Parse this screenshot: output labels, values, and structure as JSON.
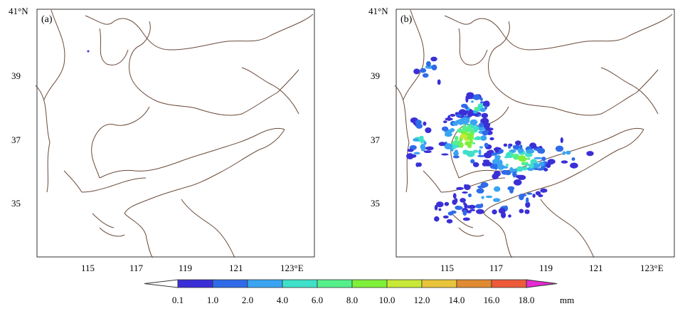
{
  "panels": [
    {
      "label": "(a)",
      "lat_ticks": [
        "41°N",
        "39",
        "37",
        "35"
      ],
      "lon_ticks": [
        "115",
        "117",
        "119",
        "121",
        "123°E"
      ]
    },
    {
      "label": "(b)",
      "lat_ticks": [
        "41°N",
        "39",
        "37",
        "35"
      ],
      "lon_ticks": [
        "115",
        "117",
        "119",
        "121",
        "123°E"
      ]
    }
  ],
  "colorbar": {
    "ticks": [
      "0.1",
      "1.0",
      "2.0",
      "4.0",
      "6.0",
      "8.0",
      "10.0",
      "12.0",
      "14.0",
      "16.0",
      "18.0"
    ],
    "unit": "mm",
    "colors": [
      "#3a2fd6",
      "#2f6be8",
      "#3aa4f2",
      "#3fe0c8",
      "#55f08a",
      "#7ef03a",
      "#c8e838",
      "#e8c43a",
      "#e08a32",
      "#ec5a3a",
      "#ee2a5a",
      "#e62ad2"
    ]
  }
}
